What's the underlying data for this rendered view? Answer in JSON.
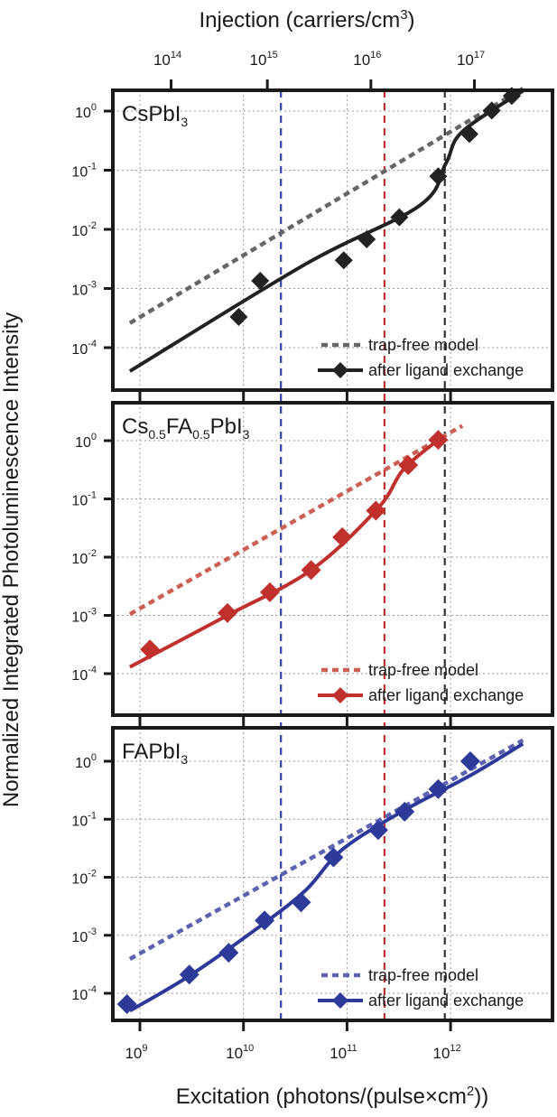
{
  "x_label": "Excitation (photons/(pulse×cm",
  "x_label_sup": "2",
  "x_label_end": "))",
  "top_label": "Injection (carriers/cm",
  "top_label_sup": "3",
  "top_label_end": ")",
  "y_label": "Normalized Integrated Photoluminescence Intensity",
  "legend_model": "trap-free model",
  "legend_exp": "after ligand exchange",
  "chart_data": {
    "type": "scatter",
    "x_scale": "log",
    "y_scale": "log",
    "xlim": [
      400000000.0,
      7000000000000.0
    ],
    "ylim": [
      3e-05,
      3
    ],
    "grid": true,
    "x_tick_values": [
      1000000000.0,
      10000000000.0,
      100000000000.0,
      1000000000000.0
    ],
    "x_tick_exponents": [
      "9",
      "10",
      "11",
      "12"
    ],
    "top_tick_values": [
      2000000000.0,
      17000000000.0,
      170000000000.0,
      1700000000000.0
    ],
    "top_tick_exponents": [
      "14",
      "15",
      "16",
      "17"
    ],
    "y_tick_values": [
      0.0001,
      0.001,
      0.01,
      0.1,
      1
    ],
    "y_tick_exponents": [
      "-4",
      "-3",
      "-2",
      "-1",
      "0"
    ],
    "vlines": [
      {
        "x": 23000000000.0,
        "color": "#3344aa"
      },
      {
        "x": 230000000000.0,
        "color": "#c0302d"
      },
      {
        "x": 880000000000.0,
        "color": "#333333"
      }
    ],
    "panels": [
      {
        "label_parts": [
          {
            "t": "CsPbI"
          },
          {
            "t": "3",
            "sub": true
          }
        ],
        "color": "#222222",
        "model_color": "#666666",
        "marker_size": 20,
        "points": [
          {
            "x": 9000000000.0,
            "y": 0.00033
          },
          {
            "x": 14500000000.0,
            "y": 0.00135
          },
          {
            "x": 93000000000.0,
            "y": 0.003
          },
          {
            "x": 155000000000.0,
            "y": 0.0068
          },
          {
            "x": 320000000000.0,
            "y": 0.016
          },
          {
            "x": 760000000000.0,
            "y": 0.079
          },
          {
            "x": 1520000000000.0,
            "y": 0.41
          },
          {
            "x": 2500000000000.0,
            "y": 1.02
          },
          {
            "x": 3900000000000.0,
            "y": 1.8
          }
        ],
        "fit": [
          {
            "x": 800000000.0,
            "y": 4e-05
          },
          {
            "x": 40000000000.0,
            "y": 0.0026
          },
          {
            "x": 500000000000.0,
            "y": 0.025
          },
          {
            "x": 900000000000.0,
            "y": 0.13
          },
          {
            "x": 1300000000000.0,
            "y": 0.45
          },
          {
            "x": 5000000000000.0,
            "y": 2.2
          }
        ],
        "model": [
          {
            "x": 800000000.0,
            "y": 0.00026
          },
          {
            "x": 5000000000000.0,
            "y": 2.4
          }
        ]
      },
      {
        "label_parts": [
          {
            "t": "Cs"
          },
          {
            "t": "0.5",
            "sub": true
          },
          {
            "t": "FA"
          },
          {
            "t": "0.5",
            "sub": true
          },
          {
            "t": "PbI"
          },
          {
            "t": "3",
            "sub": true
          }
        ],
        "color": "#c0302d",
        "model_color": "#cc6055",
        "marker_size": 22,
        "points": [
          {
            "x": 1250000000.0,
            "y": 0.00026
          },
          {
            "x": 7000000000.0,
            "y": 0.0011
          },
          {
            "x": 18000000000.0,
            "y": 0.0025
          },
          {
            "x": 45000000000.0,
            "y": 0.006
          },
          {
            "x": 90000000000.0,
            "y": 0.022
          },
          {
            "x": 190000000000.0,
            "y": 0.063
          },
          {
            "x": 390000000000.0,
            "y": 0.38
          },
          {
            "x": 760000000000.0,
            "y": 1.03
          }
        ],
        "fit": [
          {
            "x": 800000000.0,
            "y": 0.00013
          },
          {
            "x": 7000000000.0,
            "y": 0.001
          },
          {
            "x": 45000000000.0,
            "y": 0.006
          },
          {
            "x": 200000000000.0,
            "y": 0.07
          },
          {
            "x": 350000000000.0,
            "y": 0.32
          },
          {
            "x": 760000000000.0,
            "y": 1.03
          }
        ],
        "model": [
          {
            "x": 800000000.0,
            "y": 0.00105
          },
          {
            "x": 1300000000000.0,
            "y": 1.8
          }
        ]
      },
      {
        "label_parts": [
          {
            "t": "FAPbI"
          },
          {
            "t": "3",
            "sub": true
          }
        ],
        "color": "#2e3a9a",
        "model_color": "#5c63b0",
        "marker_size": 22,
        "points": [
          {
            "x": 750000000.0,
            "y": 6.5e-05
          },
          {
            "x": 3000000000.0,
            "y": 0.00021
          },
          {
            "x": 7200000000.0,
            "y": 0.0005
          },
          {
            "x": 16000000000.0,
            "y": 0.0018
          },
          {
            "x": 36000000000.0,
            "y": 0.0037
          },
          {
            "x": 74000000000.0,
            "y": 0.022
          },
          {
            "x": 200000000000.0,
            "y": 0.065
          },
          {
            "x": 360000000000.0,
            "y": 0.135
          },
          {
            "x": 760000000000.0,
            "y": 0.33
          },
          {
            "x": 1550000000000.0,
            "y": 1.0
          }
        ],
        "fit": [
          {
            "x": 800000000.0,
            "y": 5e-05
          },
          {
            "x": 3000000000.0,
            "y": 0.0002
          },
          {
            "x": 15000000000.0,
            "y": 0.0015
          },
          {
            "x": 40000000000.0,
            "y": 0.006
          },
          {
            "x": 90000000000.0,
            "y": 0.03
          },
          {
            "x": 350000000000.0,
            "y": 0.14
          },
          {
            "x": 1500000000000.0,
            "y": 0.55
          },
          {
            "x": 5000000000000.0,
            "y": 2.0
          }
        ],
        "model": [
          {
            "x": 800000000.0,
            "y": 0.00039
          },
          {
            "x": 5000000000000.0,
            "y": 2.3
          }
        ]
      }
    ]
  }
}
